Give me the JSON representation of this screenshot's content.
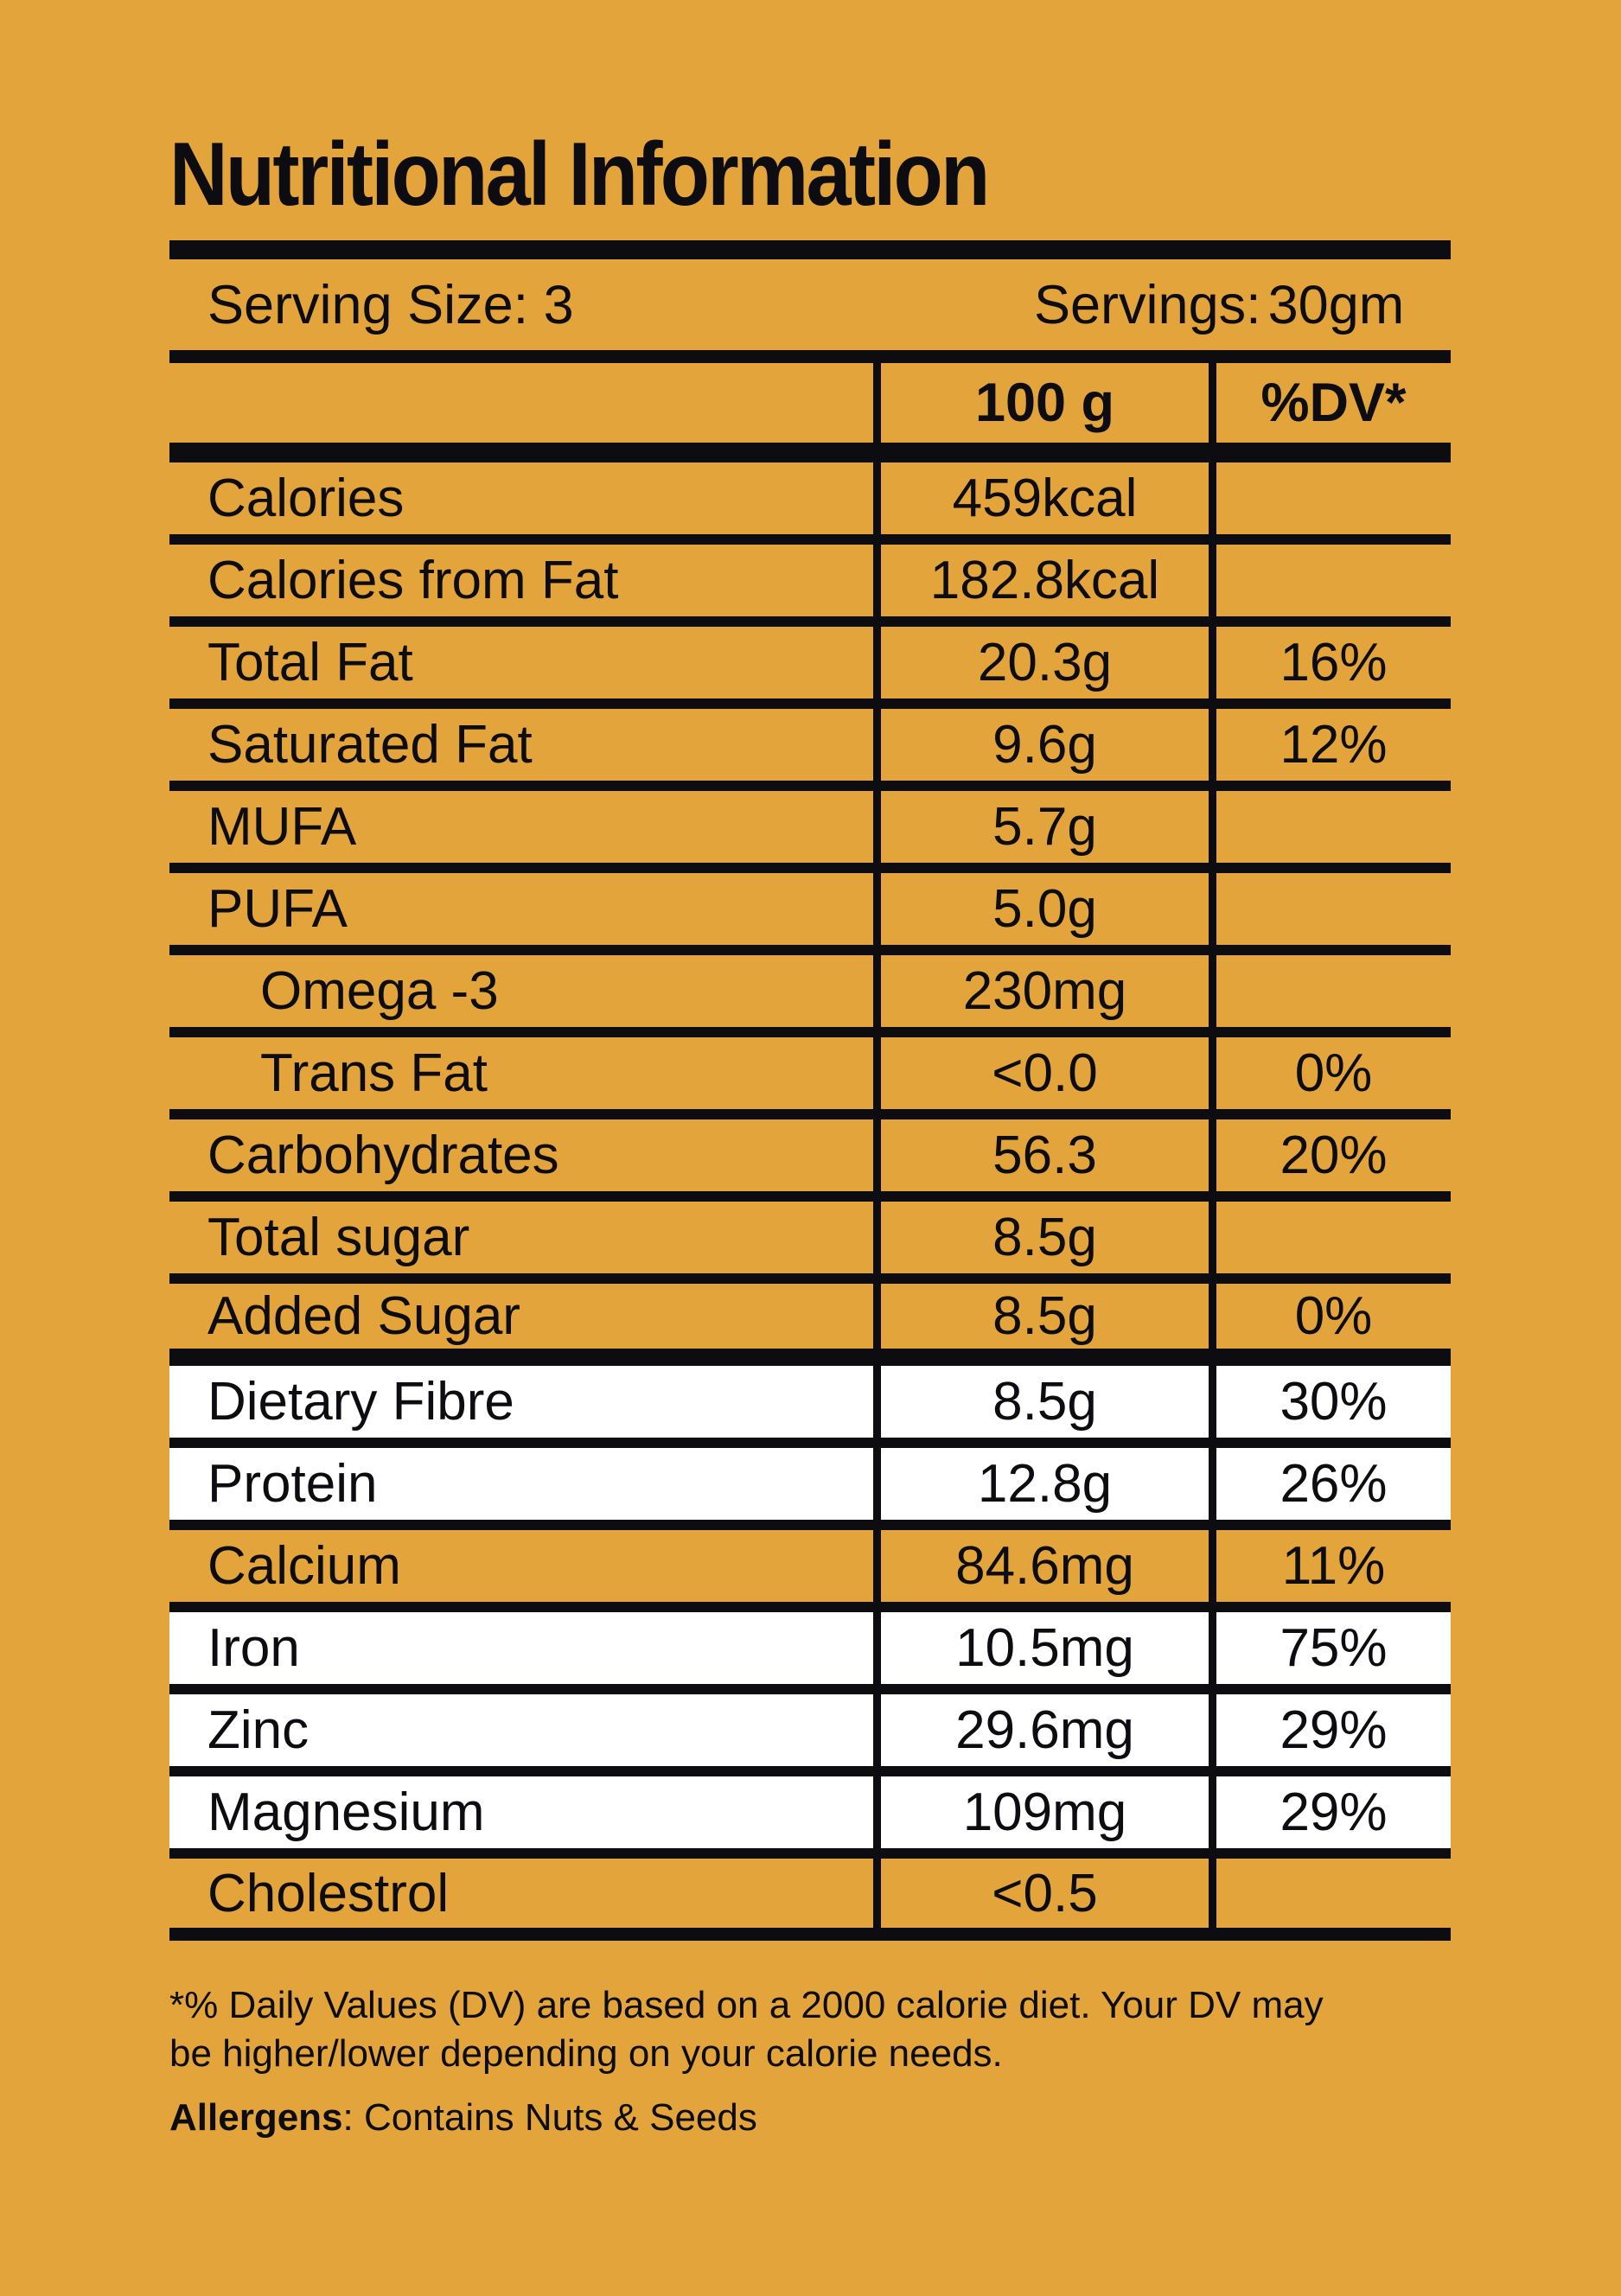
{
  "page": {
    "background_color": "#E3A43C",
    "ink_color": "#0C0C11",
    "highlight_row_color": "#FFFFFF"
  },
  "title": "Nutritional Information",
  "serving": {
    "size_label": "Serving Size: 3",
    "servings_label": "Servings:",
    "servings_value": "30gm"
  },
  "columns": {
    "amount_header": "100 g",
    "dv_header": "%DV*"
  },
  "rows": [
    {
      "label": "Calories",
      "amount": "459kcal",
      "dv": "",
      "indent": false,
      "highlight": false,
      "thick_after": false
    },
    {
      "label": "Calories from Fat",
      "amount": "182.8kcal",
      "dv": "",
      "indent": false,
      "highlight": false,
      "thick_after": false
    },
    {
      "label": "Total Fat",
      "amount": "20.3g",
      "dv": "16%",
      "indent": false,
      "highlight": false,
      "thick_after": false
    },
    {
      "label": "Saturated Fat",
      "amount": "9.6g",
      "dv": "12%",
      "indent": false,
      "highlight": false,
      "thick_after": false
    },
    {
      "label": "MUFA",
      "amount": "5.7g",
      "dv": "",
      "indent": false,
      "highlight": false,
      "thick_after": false
    },
    {
      "label": "PUFA",
      "amount": "5.0g",
      "dv": "",
      "indent": false,
      "highlight": false,
      "thick_after": false
    },
    {
      "label": "Omega -3",
      "amount": "230mg",
      "dv": "",
      "indent": true,
      "highlight": false,
      "thick_after": false
    },
    {
      "label": "Trans Fat",
      "amount": "<0.0",
      "dv": "0%",
      "indent": true,
      "highlight": false,
      "thick_after": false
    },
    {
      "label": "Carbohydrates",
      "amount": "56.3",
      "dv": "20%",
      "indent": false,
      "highlight": false,
      "thick_after": false
    },
    {
      "label": "Total sugar",
      "amount": "8.5g",
      "dv": "",
      "indent": false,
      "highlight": false,
      "thick_after": false
    },
    {
      "label": "Added Sugar",
      "amount": "8.5g",
      "dv": "0%",
      "indent": false,
      "highlight": false,
      "thick_after": true
    },
    {
      "label": "Dietary Fibre",
      "amount": "8.5g",
      "dv": "30%",
      "indent": false,
      "highlight": true,
      "thick_after": false
    },
    {
      "label": "Protein",
      "amount": "12.8g",
      "dv": "26%",
      "indent": false,
      "highlight": true,
      "thick_after": false
    },
    {
      "label": "Calcium",
      "amount": "84.6mg",
      "dv": "11%",
      "indent": false,
      "highlight": false,
      "thick_after": false
    },
    {
      "label": "Iron",
      "amount": "10.5mg",
      "dv": "75%",
      "indent": false,
      "highlight": true,
      "thick_after": false
    },
    {
      "label": "Zinc",
      "amount": "29.6mg",
      "dv": "29%",
      "indent": false,
      "highlight": true,
      "thick_after": false
    },
    {
      "label": "Magnesium",
      "amount": "109mg",
      "dv": "29%",
      "indent": false,
      "highlight": true,
      "thick_after": false
    },
    {
      "label": "Cholestrol",
      "amount": "<0.5",
      "dv": "",
      "indent": false,
      "highlight": false,
      "thick_after": false
    }
  ],
  "footnote": {
    "line1": "*% Daily Values (DV) are based on a 2000 calorie diet. Your DV may",
    "line2": "be higher/lower depending on your calorie needs."
  },
  "allergens": {
    "label": "Allergens",
    "text": ": Contains Nuts & Seeds"
  }
}
